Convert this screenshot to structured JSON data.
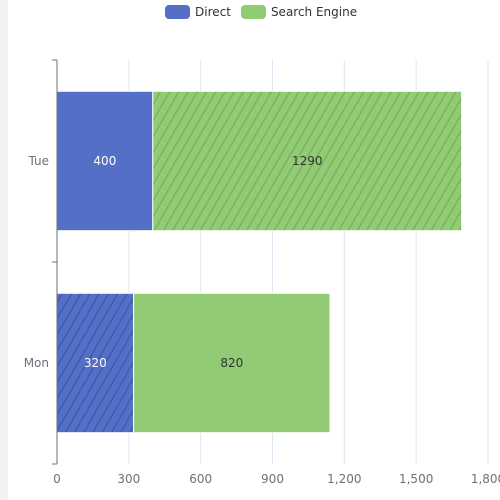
{
  "legend": [
    {
      "name": "Direct",
      "color": "#5470c6"
    },
    {
      "name": "Search Engine",
      "color": "#91cc75"
    }
  ],
  "chart_data": {
    "type": "bar",
    "orientation": "horizontal",
    "stacked": true,
    "categories": [
      "Mon",
      "Tue"
    ],
    "series": [
      {
        "name": "Direct",
        "values": [
          320,
          400
        ],
        "color": "#5470c6",
        "label_color": "#ffffff",
        "hatched": [
          true,
          false
        ]
      },
      {
        "name": "Search Engine",
        "values": [
          820,
          1290
        ],
        "color": "#91cc75",
        "label_color": "#333333",
        "hatched": [
          false,
          true
        ]
      }
    ],
    "xlim": [
      0,
      1800
    ],
    "xticks": [
      0,
      300,
      600,
      900,
      1200,
      1500,
      1800
    ],
    "xtick_labels": [
      "0",
      "300",
      "600",
      "900",
      "1,200",
      "1,500",
      "1,800"
    ],
    "grid": "vertical",
    "legend_position": "top"
  }
}
